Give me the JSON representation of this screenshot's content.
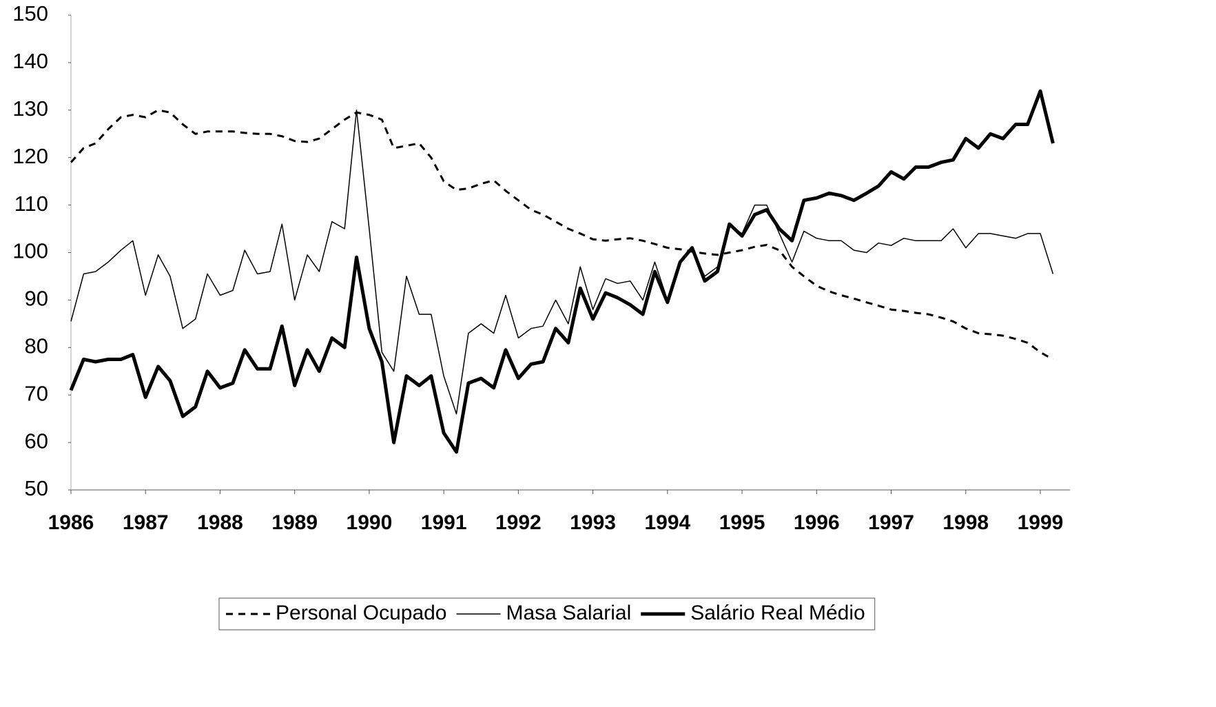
{
  "chart_data": {
    "type": "line",
    "x": [
      1986,
      1986.17,
      1986.33,
      1986.5,
      1986.67,
      1986.83,
      1987,
      1987.17,
      1987.33,
      1987.5,
      1987.67,
      1987.83,
      1988,
      1988.17,
      1988.33,
      1988.5,
      1988.67,
      1988.83,
      1989,
      1989.17,
      1989.33,
      1989.5,
      1989.67,
      1989.83,
      1990,
      1990.17,
      1990.33,
      1990.5,
      1990.67,
      1990.83,
      1991,
      1991.17,
      1991.33,
      1991.5,
      1991.67,
      1991.83,
      1992,
      1992.17,
      1992.33,
      1992.5,
      1992.67,
      1992.83,
      1993,
      1993.17,
      1993.33,
      1993.5,
      1993.67,
      1993.83,
      1994,
      1994.17,
      1994.33,
      1994.5,
      1994.67,
      1994.83,
      1995,
      1995.17,
      1995.33,
      1995.5,
      1995.67,
      1995.83,
      1996,
      1996.17,
      1996.33,
      1996.5,
      1996.67,
      1996.83,
      1997,
      1997.17,
      1997.33,
      1997.5,
      1997.67,
      1997.83,
      1998,
      1998.17,
      1998.33,
      1998.5,
      1998.67,
      1998.83,
      1999,
      1999.17
    ],
    "series": [
      {
        "name": "Personal Ocupado",
        "color": "#000000",
        "style": "dashed",
        "width": 3,
        "values": [
          119,
          122,
          123,
          126,
          128.5,
          129,
          128.5,
          130,
          129.5,
          127,
          125,
          125.5,
          125.5,
          125.5,
          125.2,
          125,
          125,
          124.5,
          123.5,
          123.3,
          124,
          126,
          128,
          129.5,
          129,
          128,
          122,
          122.5,
          123,
          120,
          115,
          113.2,
          113.5,
          114.5,
          115.2,
          113,
          111,
          109,
          108,
          106.5,
          105,
          104,
          102.8,
          102.5,
          102.8,
          103,
          102.5,
          101.8,
          101,
          100.7,
          100.2,
          99.8,
          99.5,
          100,
          100.5,
          101.2,
          101.6,
          100.5,
          97,
          95,
          93,
          91.8,
          91,
          90.3,
          89.5,
          88.8,
          88,
          87.7,
          87.3,
          87,
          86.3,
          85.5,
          84,
          83,
          82.8,
          82.5,
          81.8,
          81,
          79,
          77.5
        ]
      },
      {
        "name": "Masa Salarial",
        "color": "#000000",
        "style": "solid",
        "width": 1.5,
        "values": [
          85.5,
          95.5,
          96,
          98,
          100.5,
          102.5,
          91,
          99.5,
          95,
          84,
          86,
          95.5,
          91,
          92,
          100.5,
          95.5,
          96,
          106,
          90,
          99.5,
          96,
          106.5,
          105,
          130,
          105,
          79,
          75,
          95,
          87,
          87,
          74,
          66,
          83,
          85,
          83,
          91,
          82,
          84,
          84.5,
          90,
          85,
          97,
          88,
          94.5,
          93.5,
          94,
          90,
          98,
          90,
          98,
          100.5,
          95,
          97,
          105.5,
          104,
          110,
          110,
          104,
          98,
          104.5,
          103,
          102.5,
          102.5,
          100.5,
          100,
          102,
          101.5,
          103,
          102.5,
          102.5,
          102.5,
          105,
          101,
          104,
          104,
          103.5,
          103,
          104,
          104,
          95.5
        ]
      },
      {
        "name": "Salário Real Médio",
        "color": "#000000",
        "style": "solid",
        "width": 5,
        "values": [
          71,
          77.5,
          77,
          77.5,
          77.5,
          78.5,
          69.5,
          76,
          73,
          65.5,
          67.5,
          75,
          71.5,
          72.5,
          79.5,
          75.5,
          75.5,
          84.5,
          72,
          79.5,
          75,
          82,
          80,
          99,
          84,
          77,
          60,
          74,
          72,
          74,
          62,
          58,
          72.5,
          73.5,
          71.5,
          79.5,
          73.5,
          76.5,
          77,
          84,
          81,
          92.5,
          86,
          91.5,
          90.5,
          89,
          87,
          96,
          89.5,
          98,
          101,
          94,
          96,
          106,
          103.5,
          108,
          109,
          105,
          102.5,
          111,
          111.5,
          112.5,
          112,
          111,
          112.5,
          114,
          117,
          115.5,
          118,
          118,
          119,
          119.5,
          124,
          122,
          125,
          124,
          127,
          127,
          134,
          123
        ]
      }
    ],
    "xlim": [
      1986,
      1999.4
    ],
    "xticks": [
      1986,
      1987,
      1988,
      1989,
      1990,
      1991,
      1992,
      1993,
      1994,
      1995,
      1996,
      1997,
      1998,
      1999
    ],
    "ylim": [
      50,
      150
    ],
    "yticks": [
      50,
      60,
      70,
      80,
      90,
      100,
      110,
      120,
      130,
      140,
      150
    ],
    "grid": false,
    "legend": "bottom"
  }
}
